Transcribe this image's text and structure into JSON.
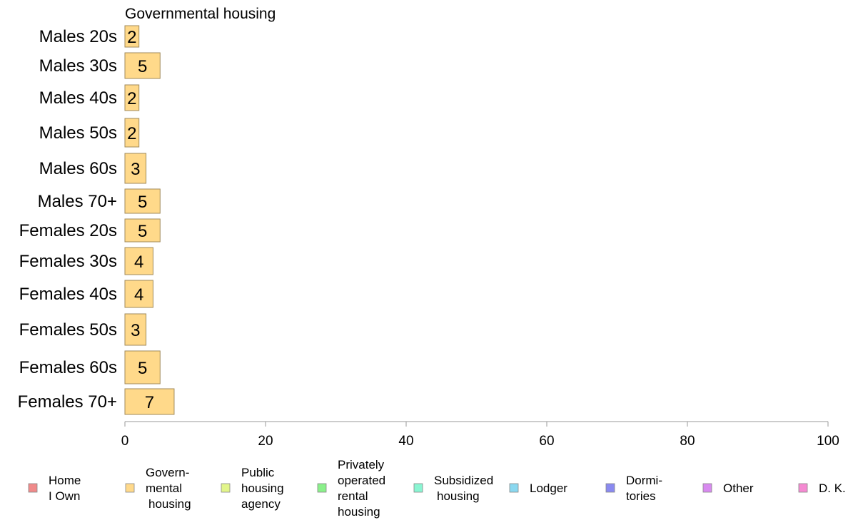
{
  "chart_data": {
    "type": "bar",
    "orientation": "horizontal",
    "title": "Governmental housing",
    "categories": [
      "Males 20s",
      "Males 30s",
      "Males 40s",
      "Males 50s",
      "Males 60s",
      "Males 70+",
      "Females 20s",
      "Females 30s",
      "Females 40s",
      "Females 50s",
      "Females 60s",
      "Females 70+"
    ],
    "series": [
      {
        "name": "Govern-\nmental\n housing",
        "color": "#FFD98A",
        "values": [
          2,
          5,
          2,
          2,
          3,
          5,
          5,
          4,
          4,
          3,
          5,
          7
        ]
      }
    ],
    "xlim": [
      0,
      100
    ],
    "xticks": [
      0,
      20,
      40,
      60,
      80,
      100
    ],
    "grid": false,
    "legend_position": "bottom",
    "legend": [
      {
        "label": "Home\nI Own",
        "color": "#F08A8A"
      },
      {
        "label": "Govern-\nmental\n housing",
        "color": "#FFD98A"
      },
      {
        "label": "Public\nhousing\nagency",
        "color": "#E2F58A"
      },
      {
        "label": "Privately\noperated\nrental\nhousing",
        "color": "#8AF08A"
      },
      {
        "label": "Subsidized\n housing",
        "color": "#8AF5D2"
      },
      {
        "label": "Lodger",
        "color": "#8AD8F0"
      },
      {
        "label": "Dormi-\ntories",
        "color": "#8A8AF0"
      },
      {
        "label": "Other",
        "color": "#D88AF0"
      },
      {
        "label": "D. K.",
        "color": "#F58AD2"
      }
    ]
  }
}
